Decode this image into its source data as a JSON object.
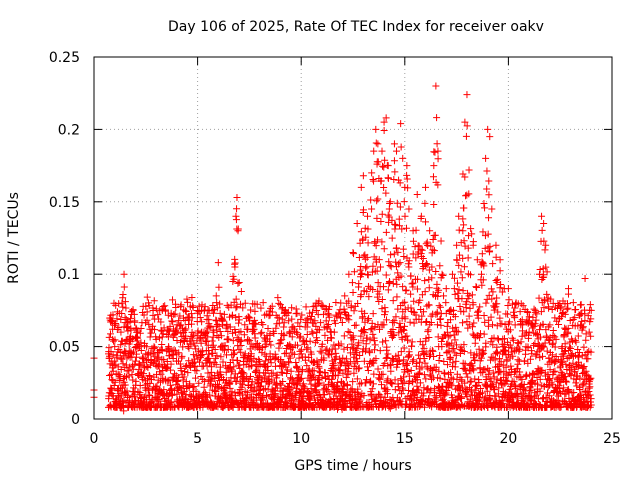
{
  "chart_data": {
    "type": "scatter",
    "title": "Day 106 of 2025, Rate Of TEC Index for receiver oakv",
    "xlabel": "GPS time / hours",
    "ylabel": "ROTI / TECUs",
    "xlim": [
      0,
      25
    ],
    "ylim": [
      0,
      0.25
    ],
    "xticks": [
      0,
      5,
      10,
      15,
      20,
      25
    ],
    "yticks": [
      0,
      0.05,
      0.1,
      0.15,
      0.2,
      0.25
    ],
    "xtick_labels": [
      "0",
      "5",
      "10",
      "15",
      "20",
      "25"
    ],
    "ytick_labels": [
      "0",
      "0.05",
      "0.1",
      "0.15",
      "0.2",
      "0.25"
    ],
    "grid": true,
    "marker": "+",
    "series_color": "#ff0000",
    "series": [
      {
        "name": "ROTI",
        "points": [
          [
            0.0,
            0.042
          ],
          [
            0.0,
            0.02
          ],
          [
            0.0,
            0.015
          ],
          [
            0.7,
            0.045
          ],
          [
            0.75,
            0.03
          ],
          [
            0.8,
            0.067
          ],
          [
            0.9,
            0.055
          ],
          [
            1.0,
            0.04
          ],
          [
            1.2,
            0.048
          ],
          [
            1.3,
            0.06
          ],
          [
            1.35,
            0.08
          ],
          [
            1.4,
            0.086
          ],
          [
            1.45,
            0.1
          ],
          [
            1.5,
            0.07
          ],
          [
            1.6,
            0.055
          ],
          [
            1.8,
            0.045
          ],
          [
            2.0,
            0.04
          ],
          [
            2.2,
            0.05
          ],
          [
            2.5,
            0.045
          ],
          [
            2.7,
            0.062
          ],
          [
            3.0,
            0.055
          ],
          [
            3.3,
            0.075
          ],
          [
            3.6,
            0.05
          ],
          [
            4.0,
            0.06
          ],
          [
            4.2,
            0.065
          ],
          [
            4.4,
            0.068
          ],
          [
            4.6,
            0.07
          ],
          [
            4.8,
            0.058
          ],
          [
            5.0,
            0.073
          ],
          [
            5.2,
            0.06
          ],
          [
            5.5,
            0.075
          ],
          [
            5.7,
            0.075
          ],
          [
            5.9,
            0.085
          ],
          [
            6.0,
            0.108
          ],
          [
            6.2,
            0.065
          ],
          [
            6.5,
            0.055
          ],
          [
            6.7,
            0.095
          ],
          [
            6.8,
            0.105
          ],
          [
            6.85,
            0.14
          ],
          [
            6.9,
            0.153
          ],
          [
            6.95,
            0.13
          ],
          [
            7.0,
            0.06
          ],
          [
            7.3,
            0.045
          ],
          [
            7.6,
            0.04
          ],
          [
            8.0,
            0.048
          ],
          [
            8.5,
            0.045
          ],
          [
            9.0,
            0.04
          ],
          [
            9.5,
            0.05
          ],
          [
            9.8,
            0.073
          ],
          [
            10.0,
            0.045
          ],
          [
            10.5,
            0.04
          ],
          [
            11.0,
            0.05
          ],
          [
            11.3,
            0.045
          ],
          [
            11.6,
            0.06
          ],
          [
            11.9,
            0.07
          ],
          [
            12.1,
            0.085
          ],
          [
            12.3,
            0.1
          ],
          [
            12.5,
            0.115
          ],
          [
            12.7,
            0.135
          ],
          [
            12.9,
            0.16
          ],
          [
            13.0,
            0.168
          ],
          [
            13.2,
            0.14
          ],
          [
            13.4,
            0.17
          ],
          [
            13.5,
            0.185
          ],
          [
            13.6,
            0.2
          ],
          [
            13.7,
            0.19
          ],
          [
            13.9,
            0.185
          ],
          [
            14.0,
            0.205
          ],
          [
            14.1,
            0.208
          ],
          [
            14.2,
            0.175
          ],
          [
            14.3,
            0.15
          ],
          [
            14.5,
            0.19
          ],
          [
            14.6,
            0.185
          ],
          [
            14.7,
            0.165
          ],
          [
            14.8,
            0.204
          ],
          [
            14.9,
            0.18
          ],
          [
            15.0,
            0.16
          ],
          [
            15.1,
            0.175
          ],
          [
            15.2,
            0.145
          ],
          [
            15.4,
            0.13
          ],
          [
            15.6,
            0.155
          ],
          [
            15.8,
            0.14
          ],
          [
            16.0,
            0.16
          ],
          [
            16.2,
            0.13
          ],
          [
            16.4,
            0.175
          ],
          [
            16.5,
            0.23
          ],
          [
            16.6,
            0.185
          ],
          [
            16.8,
            0.1
          ],
          [
            17.0,
            0.09
          ],
          [
            17.3,
            0.1
          ],
          [
            17.5,
            0.12
          ],
          [
            17.6,
            0.14
          ],
          [
            17.8,
            0.13
          ],
          [
            17.9,
            0.205
          ],
          [
            18.0,
            0.224
          ],
          [
            18.1,
            0.172
          ],
          [
            18.3,
            0.12
          ],
          [
            18.5,
            0.11
          ],
          [
            18.7,
            0.1
          ],
          [
            18.9,
            0.18
          ],
          [
            19.0,
            0.2
          ],
          [
            19.1,
            0.195
          ],
          [
            19.2,
            0.145
          ],
          [
            19.4,
            0.12
          ],
          [
            19.6,
            0.11
          ],
          [
            19.8,
            0.09
          ],
          [
            20.0,
            0.09
          ],
          [
            20.3,
            0.07
          ],
          [
            20.6,
            0.065
          ],
          [
            21.0,
            0.06
          ],
          [
            21.3,
            0.075
          ],
          [
            21.5,
            0.1
          ],
          [
            21.6,
            0.14
          ],
          [
            21.7,
            0.135
          ],
          [
            21.8,
            0.12
          ],
          [
            22.0,
            0.065
          ],
          [
            22.3,
            0.055
          ],
          [
            22.6,
            0.05
          ],
          [
            22.9,
            0.09
          ],
          [
            23.2,
            0.07
          ],
          [
            23.5,
            0.065
          ],
          [
            23.7,
            0.097
          ],
          [
            23.9,
            0.06
          ],
          [
            24.0,
            0.075
          ]
        ]
      }
    ]
  }
}
